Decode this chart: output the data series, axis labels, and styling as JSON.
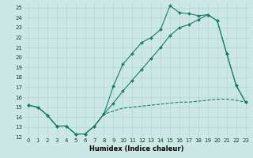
{
  "xlabel": "Humidex (Indice chaleur)",
  "xlim": [
    -0.5,
    23.5
  ],
  "ylim": [
    12,
    25.5
  ],
  "yticks": [
    12,
    13,
    14,
    15,
    16,
    17,
    18,
    19,
    20,
    21,
    22,
    23,
    24,
    25
  ],
  "xticks": [
    0,
    1,
    2,
    3,
    4,
    5,
    6,
    7,
    8,
    9,
    10,
    11,
    12,
    13,
    14,
    15,
    16,
    17,
    18,
    19,
    20,
    21,
    22,
    23
  ],
  "bg_color": "#cce8e4",
  "line_color": "#1a7a6e",
  "grid_color": "#aad4ce",
  "series1_x": [
    0,
    1,
    2,
    3,
    4,
    5,
    6,
    7,
    8,
    9,
    10,
    11,
    12,
    13,
    14,
    15,
    16,
    17,
    18,
    19,
    20,
    21,
    22,
    23
  ],
  "series1_y": [
    15.2,
    15.0,
    14.2,
    13.1,
    13.1,
    12.3,
    12.3,
    13.1,
    14.3,
    17.1,
    19.3,
    20.4,
    21.5,
    22.0,
    22.8,
    25.2,
    24.5,
    24.4,
    24.2,
    24.3,
    23.7,
    20.4,
    17.2,
    15.5
  ],
  "series2_x": [
    0,
    1,
    2,
    3,
    4,
    5,
    6,
    7,
    8,
    9,
    10,
    11,
    12,
    13,
    14,
    15,
    16,
    17,
    18,
    19,
    20,
    21,
    22,
    23
  ],
  "series2_y": [
    15.2,
    15.0,
    14.2,
    13.1,
    13.1,
    12.3,
    12.3,
    13.1,
    14.3,
    14.6,
    14.9,
    15.0,
    15.1,
    15.2,
    15.3,
    15.4,
    15.5,
    15.5,
    15.6,
    15.7,
    15.8,
    15.8,
    15.7,
    15.5
  ],
  "series3_x": [
    0,
    1,
    2,
    3,
    4,
    5,
    6,
    7,
    8,
    9,
    10,
    11,
    12,
    13,
    14,
    15,
    16,
    17,
    18,
    19,
    20,
    21,
    22,
    23
  ],
  "series3_y": [
    15.2,
    15.0,
    14.2,
    13.1,
    13.1,
    12.3,
    12.3,
    13.1,
    14.3,
    15.4,
    16.6,
    17.7,
    18.8,
    19.9,
    21.0,
    22.2,
    23.0,
    23.3,
    23.8,
    24.3,
    23.7,
    20.4,
    17.2,
    15.5
  ],
  "tick_fontsize": 5.0,
  "xlabel_fontsize": 6.0,
  "marker_size": 2.0,
  "linewidth": 0.8
}
